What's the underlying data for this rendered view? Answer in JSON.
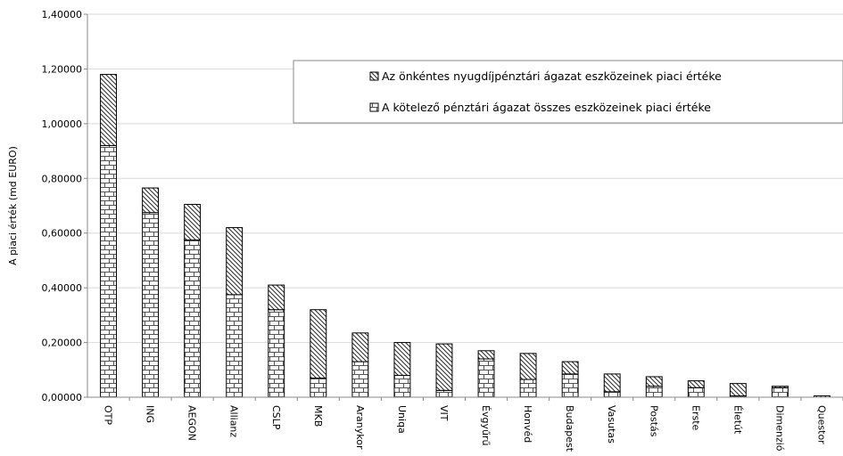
{
  "chart_data": {
    "type": "bar",
    "stacked": true,
    "ylabel": "A piaci érték  (md EURO)",
    "ylim": [
      0,
      1.4
    ],
    "yticks": [
      "0,00000",
      "0,20000",
      "0,40000",
      "0,60000",
      "0,80000",
      "1,00000",
      "1,20000",
      "1,40000"
    ],
    "grid": true,
    "legend_position": "top-right",
    "categories": [
      "OTP",
      "ING",
      "AEGON",
      "Allianz",
      "CSLP",
      "MKB",
      "Aranykor",
      "Uniqa",
      "VIT",
      "Évgyűrű",
      "Honvéd",
      "Budapest",
      "Vasutas",
      "Postás",
      "Erste",
      "Életút",
      "Dimenzió",
      "Questor"
    ],
    "series": [
      {
        "name": "A kötelező pénztári ágazat összes eszközeinek piaci  értéke",
        "pattern": "brick",
        "values": [
          0.92,
          0.675,
          0.575,
          0.375,
          0.32,
          0.07,
          0.13,
          0.08,
          0.025,
          0.14,
          0.065,
          0.085,
          0.02,
          0.04,
          0.035,
          0.005,
          0.035,
          0.0
        ]
      },
      {
        "name": "Az önkéntes nyugdíjpénztári ágazat eszközeinek piaci értéke",
        "pattern": "hatch",
        "values": [
          0.26,
          0.09,
          0.13,
          0.245,
          0.09,
          0.25,
          0.105,
          0.12,
          0.17,
          0.03,
          0.095,
          0.045,
          0.065,
          0.035,
          0.025,
          0.045,
          0.005,
          0.005
        ]
      }
    ]
  }
}
